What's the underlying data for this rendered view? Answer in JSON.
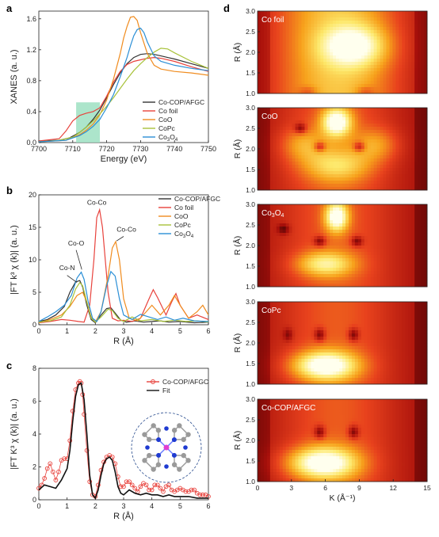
{
  "panels": {
    "a": "a",
    "b": "b",
    "c": "c",
    "d": "d"
  },
  "chart_data": [
    {
      "id": "a",
      "type": "line",
      "xlabel": "Energy (eV)",
      "ylabel": "XANES (a. u.)",
      "xlim": [
        7700,
        7750
      ],
      "ylim": [
        0,
        1.7
      ],
      "xticks": [
        7700,
        7710,
        7720,
        7730,
        7740,
        7750
      ],
      "yticks": [
        0.0,
        0.4,
        0.8,
        1.2,
        1.6
      ],
      "highlight_region": {
        "x": [
          7711,
          7718
        ],
        "y": [
          0,
          0.52
        ],
        "color": "#9ee0c2"
      },
      "legend_position": "right",
      "series": [
        {
          "name": "Co-COP/AFGC",
          "color": "#333333",
          "x": [
            7700,
            7706,
            7709,
            7712,
            7714,
            7716,
            7718,
            7720,
            7722,
            7724,
            7726,
            7728,
            7730,
            7732,
            7734,
            7736,
            7738,
            7740,
            7745,
            7750
          ],
          "y": [
            0.02,
            0.03,
            0.06,
            0.13,
            0.2,
            0.3,
            0.42,
            0.58,
            0.75,
            0.9,
            1.02,
            1.1,
            1.14,
            1.15,
            1.14,
            1.12,
            1.1,
            1.08,
            1.02,
            0.96
          ]
        },
        {
          "name": "Co foil",
          "color": "#e8423c",
          "x": [
            7700,
            7706,
            7708,
            7710,
            7712,
            7714,
            7716,
            7718,
            7720,
            7722,
            7724,
            7726,
            7728,
            7730,
            7732,
            7734,
            7736,
            7740,
            7745,
            7750
          ],
          "y": [
            0.02,
            0.05,
            0.15,
            0.28,
            0.35,
            0.38,
            0.4,
            0.45,
            0.6,
            0.78,
            0.92,
            1.01,
            1.05,
            1.07,
            1.09,
            1.1,
            1.09,
            1.05,
            0.98,
            0.92
          ]
        },
        {
          "name": "CoO",
          "color": "#f08c1f",
          "x": [
            7700,
            7708,
            7712,
            7714,
            7716,
            7718,
            7720,
            7722,
            7724,
            7725,
            7726,
            7727,
            7728,
            7729,
            7730,
            7732,
            7734,
            7736,
            7740,
            7745,
            7750
          ],
          "y": [
            0.01,
            0.03,
            0.1,
            0.16,
            0.24,
            0.36,
            0.55,
            0.82,
            1.15,
            1.35,
            1.5,
            1.62,
            1.63,
            1.58,
            1.42,
            1.15,
            1.0,
            0.95,
            0.92,
            0.9,
            0.87
          ]
        },
        {
          "name": "CoPc",
          "color": "#a8c23a",
          "x": [
            7700,
            7706,
            7710,
            7712,
            7714,
            7716,
            7718,
            7720,
            7722,
            7724,
            7726,
            7728,
            7730,
            7732,
            7734,
            7736,
            7738,
            7740,
            7745,
            7750
          ],
          "y": [
            0.01,
            0.03,
            0.07,
            0.13,
            0.2,
            0.28,
            0.37,
            0.47,
            0.58,
            0.7,
            0.82,
            0.93,
            1.02,
            1.1,
            1.17,
            1.22,
            1.21,
            1.16,
            1.05,
            0.96
          ]
        },
        {
          "name": "Co3O4",
          "color": "#2b8fd6",
          "x": [
            7700,
            7708,
            7712,
            7714,
            7716,
            7718,
            7720,
            7722,
            7724,
            7726,
            7727,
            7728,
            7729,
            7730,
            7731,
            7732,
            7734,
            7736,
            7740,
            7745,
            7750
          ],
          "y": [
            0.01,
            0.03,
            0.09,
            0.14,
            0.21,
            0.3,
            0.45,
            0.62,
            0.85,
            1.1,
            1.25,
            1.38,
            1.46,
            1.48,
            1.42,
            1.3,
            1.12,
            1.05,
            1.0,
            0.96,
            0.93
          ]
        }
      ]
    },
    {
      "id": "b",
      "type": "line",
      "xlabel": "R (Å)",
      "ylabel": "|FT k³ χ (k)| (a. u.)",
      "xlim": [
        0,
        6
      ],
      "ylim": [
        0,
        20
      ],
      "xticks": [
        0,
        1,
        2,
        3,
        4,
        5,
        6
      ],
      "yticks": [
        0,
        5,
        10,
        15,
        20
      ],
      "legend_position": "top-right",
      "annotations": [
        {
          "text": "Co-Co",
          "x": 2.05,
          "y": 18.5
        },
        {
          "text": "Co-Co",
          "x": 3.1,
          "y": 14.3
        },
        {
          "text": "Co-O",
          "x": 1.32,
          "y": 12.2
        },
        {
          "text": "Co-N",
          "x": 1.0,
          "y": 8.4
        }
      ],
      "series": [
        {
          "name": "Co-COP/AFGC",
          "color": "#333333",
          "x": [
            0,
            0.3,
            0.6,
            0.9,
            1.1,
            1.3,
            1.45,
            1.55,
            1.7,
            1.85,
            2.0,
            2.2,
            2.4,
            2.55,
            2.7,
            2.9,
            3.1,
            3.4,
            3.7,
            4.0,
            4.3,
            4.6,
            5.0,
            5.5,
            6.0
          ],
          "y": [
            0.5,
            0.8,
            1.5,
            2.8,
            5.0,
            6.6,
            6.8,
            5.8,
            3.0,
            0.8,
            0.3,
            1.5,
            2.5,
            2.6,
            1.8,
            0.7,
            0.4,
            0.6,
            0.4,
            0.5,
            0.6,
            0.4,
            0.5,
            0.3,
            0.4
          ]
        },
        {
          "name": "Co foil",
          "color": "#e8423c",
          "x": [
            0,
            0.4,
            0.8,
            1.1,
            1.4,
            1.6,
            1.8,
            1.95,
            2.05,
            2.15,
            2.25,
            2.45,
            2.6,
            2.8,
            3.0,
            3.3,
            3.6,
            3.9,
            4.05,
            4.2,
            4.5,
            4.7,
            4.85,
            5.0,
            5.3,
            5.6,
            6.0
          ],
          "y": [
            0.3,
            0.5,
            0.8,
            0.7,
            0.5,
            0.4,
            3.0,
            10.0,
            16.5,
            17.7,
            15.0,
            5.0,
            1.0,
            0.6,
            0.7,
            0.5,
            1.0,
            4.0,
            5.4,
            4.2,
            1.5,
            3.5,
            4.8,
            3.0,
            1.0,
            1.5,
            0.8
          ]
        },
        {
          "name": "CoO",
          "color": "#f08c1f",
          "x": [
            0,
            0.4,
            0.8,
            1.1,
            1.35,
            1.55,
            1.7,
            1.85,
            2.0,
            2.2,
            2.45,
            2.6,
            2.72,
            2.85,
            3.0,
            3.2,
            3.5,
            3.8,
            4.0,
            4.3,
            4.6,
            4.8,
            5.0,
            5.3,
            5.6,
            5.8,
            6.0
          ],
          "y": [
            0.3,
            0.8,
            1.5,
            2.8,
            4.5,
            5.0,
            3.5,
            1.2,
            0.4,
            2.0,
            7.5,
            11.8,
            12.8,
            10.0,
            4.0,
            1.0,
            0.6,
            2.0,
            3.0,
            1.5,
            3.0,
            4.5,
            3.0,
            1.0,
            2.0,
            3.0,
            1.5
          ]
        },
        {
          "name": "CoPc",
          "color": "#a8c23a",
          "x": [
            0,
            0.4,
            0.8,
            1.1,
            1.3,
            1.45,
            1.55,
            1.7,
            1.85,
            2.0,
            2.2,
            2.45,
            2.6,
            2.8,
            3.0,
            3.3,
            3.6,
            4.0,
            4.4,
            4.8,
            5.2,
            5.6,
            6.0
          ],
          "y": [
            0.4,
            0.6,
            1.2,
            3.0,
            5.5,
            6.5,
            6.0,
            3.5,
            1.0,
            0.4,
            1.2,
            2.4,
            2.2,
            1.0,
            0.5,
            1.2,
            0.6,
            0.8,
            0.5,
            0.7,
            0.5,
            0.6,
            0.4
          ]
        },
        {
          "name": "Co3O4",
          "color": "#2b8fd6",
          "x": [
            0,
            0.3,
            0.6,
            0.9,
            1.15,
            1.35,
            1.5,
            1.6,
            1.75,
            1.9,
            2.05,
            2.2,
            2.4,
            2.55,
            2.7,
            2.85,
            3.0,
            3.3,
            3.6,
            3.9,
            4.2,
            4.5,
            4.8,
            5.1,
            5.5,
            6.0
          ],
          "y": [
            0.5,
            1.2,
            2.0,
            3.0,
            4.5,
            7.2,
            8.1,
            7.0,
            3.5,
            1.0,
            0.5,
            2.0,
            6.0,
            8.2,
            7.5,
            4.0,
            1.5,
            0.8,
            1.6,
            1.2,
            0.8,
            1.2,
            0.7,
            1.0,
            0.6,
            0.5
          ]
        }
      ]
    },
    {
      "id": "c",
      "type": "scatter",
      "xlabel": "R (Å)",
      "ylabel": "|FT K³ χ (k)| (a. u.)",
      "xlim": [
        0,
        6
      ],
      "ylim": [
        0,
        8
      ],
      "xticks": [
        0,
        1,
        2,
        3,
        4,
        5,
        6
      ],
      "yticks": [
        0,
        2,
        4,
        6,
        8
      ],
      "legend_position": "top-right",
      "series": [
        {
          "name": "Co-COP/AFGC",
          "color": "#e8423c",
          "marker": "open-circle",
          "x": [
            0.0,
            0.1,
            0.2,
            0.3,
            0.4,
            0.5,
            0.6,
            0.7,
            0.8,
            0.9,
            1.0,
            1.1,
            1.2,
            1.3,
            1.4,
            1.45,
            1.5,
            1.55,
            1.6,
            1.7,
            1.8,
            1.9,
            2.0,
            2.1,
            2.2,
            2.3,
            2.4,
            2.5,
            2.6,
            2.7,
            2.8,
            2.9,
            3.0,
            3.1,
            3.2,
            3.3,
            3.4,
            3.5,
            3.6,
            3.7,
            3.8,
            3.9,
            4.0,
            4.1,
            4.2,
            4.3,
            4.4,
            4.5,
            4.6,
            4.7,
            4.8,
            4.9,
            5.0,
            5.1,
            5.2,
            5.3,
            5.4,
            5.5,
            5.6,
            5.7,
            5.8,
            5.9,
            6.0
          ],
          "y": [
            0.7,
            0.9,
            1.3,
            1.9,
            2.2,
            1.7,
            1.2,
            1.7,
            2.4,
            2.5,
            2.5,
            3.6,
            5.4,
            6.7,
            7.1,
            7.2,
            7.1,
            6.4,
            5.2,
            3.0,
            1.1,
            0.3,
            0.2,
            0.9,
            1.8,
            2.3,
            2.6,
            2.7,
            2.6,
            2.2,
            1.4,
            0.8,
            0.8,
            1.1,
            1.1,
            0.9,
            0.7,
            0.5,
            0.8,
            1.0,
            0.9,
            0.6,
            0.6,
            0.9,
            0.9,
            0.7,
            0.5,
            0.8,
            0.9,
            0.6,
            0.5,
            0.6,
            0.7,
            0.6,
            0.5,
            0.5,
            0.6,
            0.6,
            0.4,
            0.3,
            0.3,
            0.3,
            0.2
          ]
        },
        {
          "name": "Fit",
          "color": "#111111",
          "type": "line",
          "x": [
            0.0,
            0.2,
            0.4,
            0.6,
            0.8,
            1.0,
            1.1,
            1.2,
            1.3,
            1.4,
            1.5,
            1.6,
            1.7,
            1.8,
            1.9,
            2.0,
            2.1,
            2.2,
            2.3,
            2.4,
            2.5,
            2.6,
            2.7,
            2.8,
            2.9,
            3.0,
            3.2,
            3.4,
            3.6,
            3.8,
            4.0,
            4.2,
            4.4,
            4.6,
            4.8,
            5.0,
            5.3,
            5.6,
            6.0
          ],
          "y": [
            0.6,
            0.9,
            0.8,
            0.7,
            1.2,
            1.9,
            3.0,
            4.8,
            6.3,
            7.0,
            7.1,
            6.1,
            4.0,
            1.5,
            0.3,
            0.1,
            0.6,
            1.5,
            2.2,
            2.5,
            2.6,
            2.4,
            1.7,
            0.8,
            0.4,
            0.3,
            0.6,
            0.4,
            0.3,
            0.4,
            0.3,
            0.3,
            0.2,
            0.3,
            0.2,
            0.2,
            0.2,
            0.1,
            0.1
          ]
        }
      ]
    },
    {
      "id": "d",
      "type": "heatmap",
      "xlabel": "K (Å⁻¹)",
      "ylabel": "R (Å)",
      "xlim": [
        0,
        15
      ],
      "ylim": [
        1.0,
        3.0
      ],
      "xticks": [
        0,
        3,
        6,
        9,
        12,
        15
      ],
      "yticks": [
        1.0,
        1.5,
        2.0,
        2.5,
        3.0
      ],
      "colormap": [
        "#3a0303",
        "#a8100b",
        "#e8421d",
        "#f7a21c",
        "#fde86a",
        "#ffffee"
      ],
      "maps": [
        {
          "label": "Co foil",
          "background": 0.55,
          "blobs": [
            {
              "k": 8.5,
              "r": 2.15,
              "sk": 2.8,
              "sr": 0.5,
              "a": 0.5
            }
          ],
          "dark": [
            {
              "k": 4.5,
              "r": 1.05,
              "sk": 0.8,
              "sr": 0.12,
              "a": 0.15
            },
            {
              "k": 9.5,
              "r": 1.05,
              "sk": 0.8,
              "sr": 0.12,
              "a": 0.15
            }
          ]
        },
        {
          "label": "CoO",
          "background": 0.3,
          "blobs": [
            {
              "k": 7.0,
              "r": 2.65,
              "sk": 1.3,
              "sr": 0.35,
              "a": 0.7
            },
            {
              "k": 7.0,
              "r": 1.6,
              "sk": 3.0,
              "sr": 0.4,
              "a": 0.35
            },
            {
              "k": 4.0,
              "r": 2.1,
              "sk": 2.0,
              "sr": 0.4,
              "a": 0.25
            },
            {
              "k": 10.5,
              "r": 2.1,
              "sk": 2.0,
              "sr": 0.4,
              "a": 0.25
            }
          ],
          "dark": [
            {
              "k": 3.8,
              "r": 2.5,
              "sk": 0.5,
              "sr": 0.12,
              "a": 0.3
            },
            {
              "k": 5.5,
              "r": 2.05,
              "sk": 0.5,
              "sr": 0.12,
              "a": 0.3
            },
            {
              "k": 9.0,
              "r": 2.05,
              "sk": 0.5,
              "sr": 0.12,
              "a": 0.3
            }
          ]
        },
        {
          "label": "Co3O4",
          "background": 0.3,
          "blobs": [
            {
              "k": 7.0,
              "r": 2.7,
              "sk": 1.0,
              "sr": 0.35,
              "a": 0.7
            },
            {
              "k": 6.0,
              "r": 1.55,
              "sk": 2.5,
              "sr": 0.3,
              "a": 0.45
            }
          ],
          "dark": [
            {
              "k": 5.5,
              "r": 2.1,
              "sk": 0.5,
              "sr": 0.12,
              "a": 0.3
            },
            {
              "k": 8.8,
              "r": 2.1,
              "sk": 0.5,
              "sr": 0.12,
              "a": 0.3
            },
            {
              "k": 2.3,
              "r": 2.4,
              "sk": 0.5,
              "sr": 0.12,
              "a": 0.25
            }
          ]
        },
        {
          "label": "CoPc",
          "background": 0.3,
          "blobs": [
            {
              "k": 6.0,
              "r": 1.45,
              "sk": 2.8,
              "sr": 0.35,
              "a": 0.72
            }
          ],
          "dark": [
            {
              "k": 5.5,
              "r": 2.2,
              "sk": 0.45,
              "sr": 0.15,
              "a": 0.3
            },
            {
              "k": 8.5,
              "r": 2.2,
              "sk": 0.45,
              "sr": 0.15,
              "a": 0.3
            },
            {
              "k": 2.7,
              "r": 2.2,
              "sk": 0.4,
              "sr": 0.15,
              "a": 0.2
            }
          ]
        },
        {
          "label": "Co-COP/AFGC",
          "background": 0.3,
          "blobs": [
            {
              "k": 5.8,
              "r": 1.45,
              "sk": 3.0,
              "sr": 0.38,
              "a": 0.72
            }
          ],
          "dark": [
            {
              "k": 5.5,
              "r": 2.2,
              "sk": 0.45,
              "sr": 0.15,
              "a": 0.3
            },
            {
              "k": 8.5,
              "r": 2.2,
              "sk": 0.45,
              "sr": 0.15,
              "a": 0.3
            }
          ]
        }
      ]
    }
  ]
}
